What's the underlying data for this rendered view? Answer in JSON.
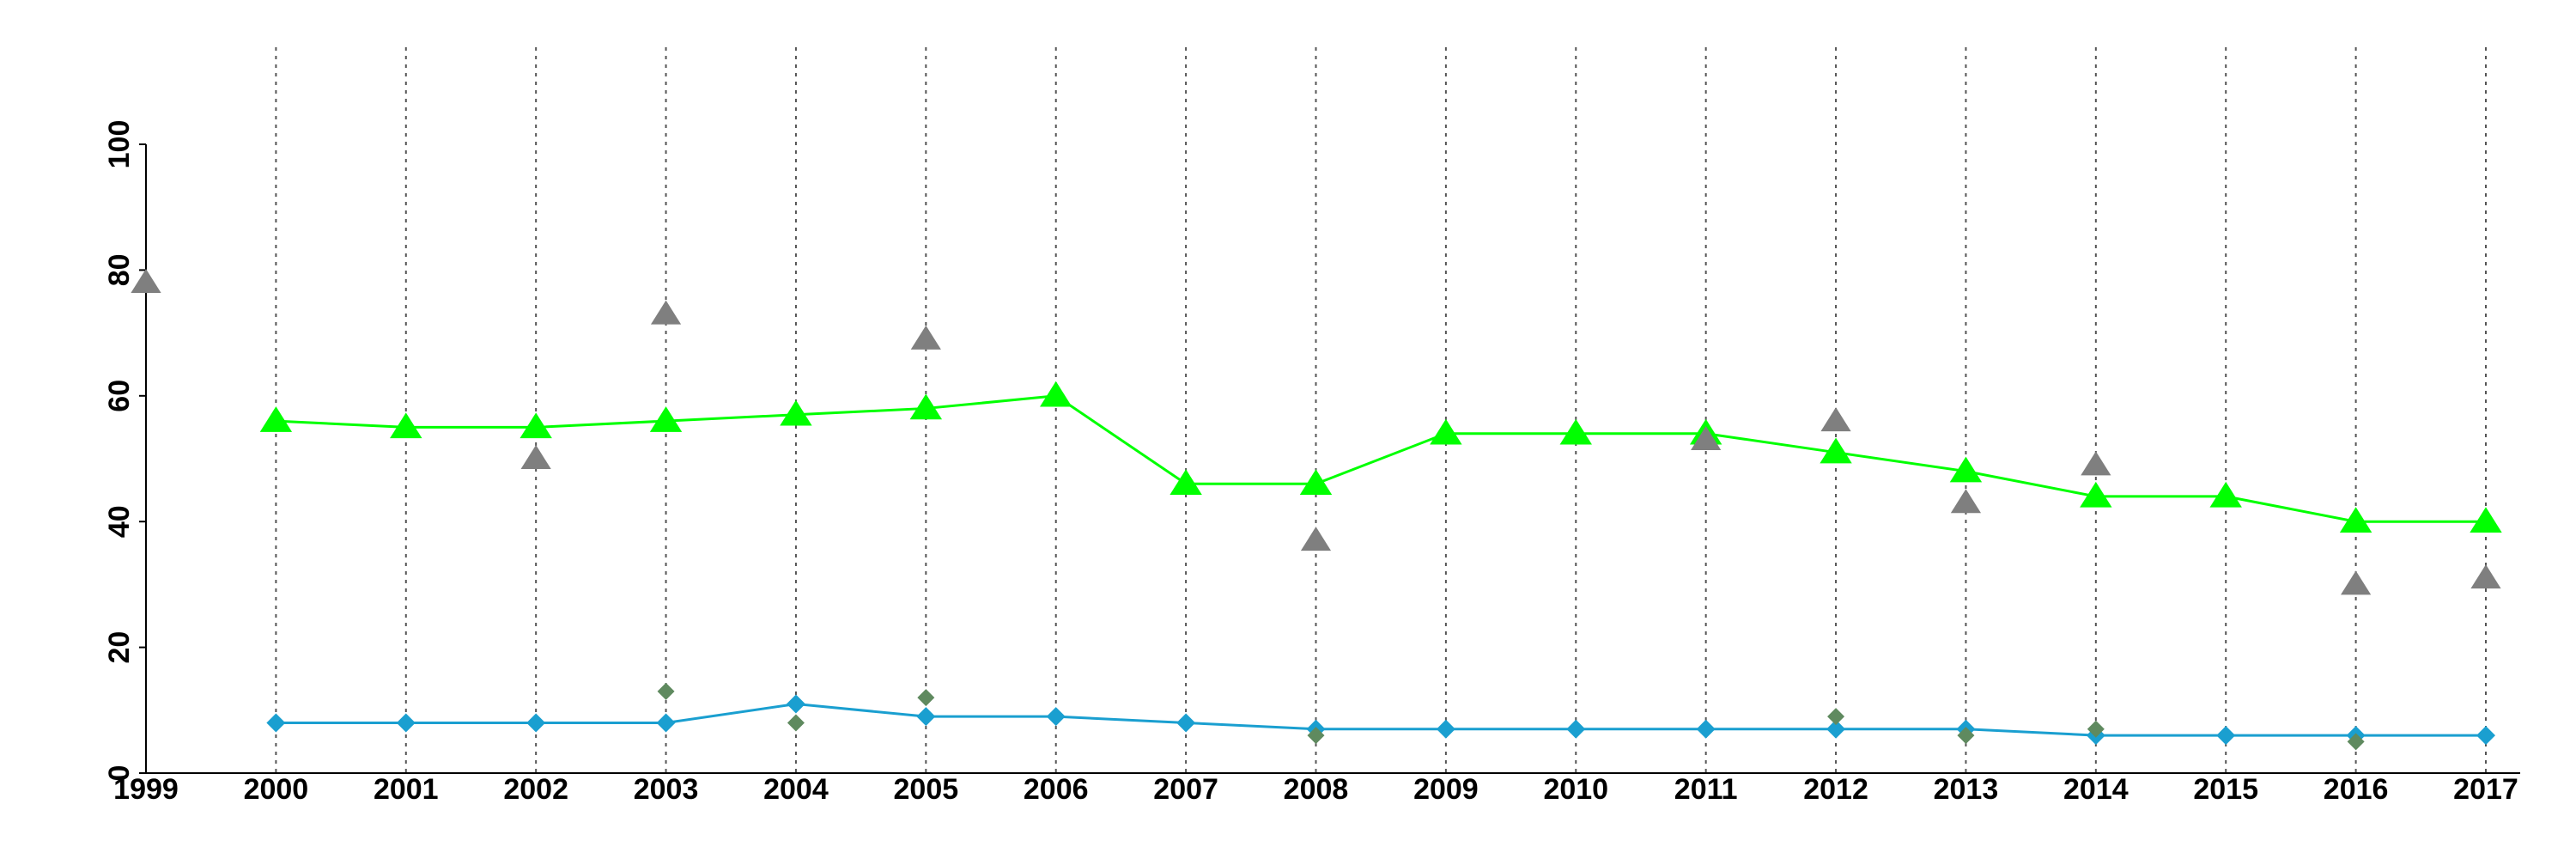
{
  "chart_data": {
    "type": "line",
    "title": "",
    "xlabel": "",
    "ylabel": "",
    "x": [
      1999,
      2000,
      2001,
      2002,
      2003,
      2004,
      2005,
      2006,
      2007,
      2008,
      2009,
      2010,
      2011,
      2012,
      2013,
      2014,
      2015,
      2016,
      2017
    ],
    "x_tick_labels": [
      "1999",
      "2000",
      "2001",
      "2002",
      "2003",
      "2004",
      "2005",
      "2006",
      "2007",
      "2008",
      "2009",
      "2010",
      "2011",
      "2012",
      "2013",
      "2014",
      "2015",
      "2016",
      "2017"
    ],
    "ylim": [
      0,
      100
    ],
    "y_ticks": [
      0,
      20,
      40,
      60,
      80,
      100
    ],
    "y_tick_labels": [
      "0",
      "20",
      "40",
      "60",
      "80",
      "100"
    ],
    "vertical_grid": true,
    "legend": "none",
    "series": [
      {
        "kind": "line",
        "marker": "triangle",
        "color": "#00ff00",
        "points": [
          [
            2000,
            56
          ],
          [
            2001,
            55
          ],
          [
            2002,
            55
          ],
          [
            2003,
            56
          ],
          [
            2004,
            57
          ],
          [
            2005,
            58
          ],
          [
            2006,
            60
          ],
          [
            2007,
            46
          ],
          [
            2008,
            46
          ],
          [
            2009,
            54
          ],
          [
            2010,
            54
          ],
          [
            2011,
            54
          ],
          [
            2012,
            51
          ],
          [
            2013,
            48
          ],
          [
            2014,
            44
          ],
          [
            2015,
            44
          ],
          [
            2016,
            40
          ],
          [
            2017,
            40
          ]
        ]
      },
      {
        "kind": "scatter",
        "marker": "triangle",
        "color": "#7f7f7f",
        "points": [
          [
            1999,
            78
          ],
          [
            2002,
            50
          ],
          [
            2003,
            73
          ],
          [
            2005,
            69
          ],
          [
            2008,
            37
          ],
          [
            2011,
            53
          ],
          [
            2012,
            56
          ],
          [
            2013,
            43
          ],
          [
            2014,
            49
          ],
          [
            2016,
            30
          ],
          [
            2017,
            31
          ]
        ]
      },
      {
        "kind": "line",
        "marker": "diamond",
        "color": "#1a9fd0",
        "points": [
          [
            2000,
            8
          ],
          [
            2001,
            8
          ],
          [
            2002,
            8
          ],
          [
            2003,
            8
          ],
          [
            2004,
            11
          ],
          [
            2005,
            9
          ],
          [
            2006,
            9
          ],
          [
            2007,
            8
          ],
          [
            2008,
            7
          ],
          [
            2009,
            7
          ],
          [
            2010,
            7
          ],
          [
            2011,
            7
          ],
          [
            2012,
            7
          ],
          [
            2013,
            7
          ],
          [
            2014,
            6
          ],
          [
            2015,
            6
          ],
          [
            2016,
            6
          ],
          [
            2017,
            6
          ]
        ]
      },
      {
        "kind": "scatter",
        "marker": "diamond",
        "color": "#5f8a5f",
        "points": [
          [
            2003,
            13
          ],
          [
            2004,
            8
          ],
          [
            2005,
            12
          ],
          [
            2008,
            6
          ],
          [
            2012,
            9
          ],
          [
            2013,
            6
          ],
          [
            2014,
            7
          ],
          [
            2016,
            5
          ]
        ]
      }
    ]
  }
}
